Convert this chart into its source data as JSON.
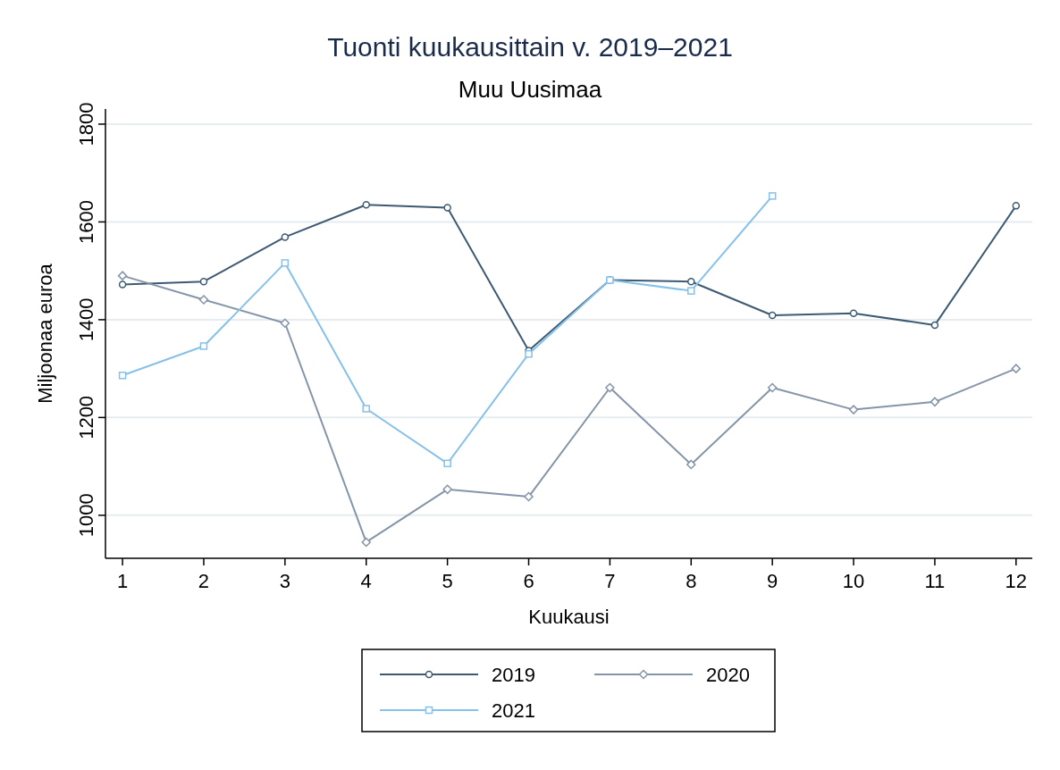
{
  "chart_data": {
    "type": "line",
    "title": "Tuonti kuukausittain v. 2019–2021",
    "subtitle": "Muu Uusimaa",
    "xlabel": "Kuukausi",
    "ylabel": "Miljoonaa euroa",
    "x": [
      1,
      2,
      3,
      4,
      5,
      6,
      7,
      8,
      9,
      10,
      11,
      12
    ],
    "series": [
      {
        "name": "2019",
        "color": "#3e5a73",
        "marker": "circle",
        "values": [
          1472,
          1478,
          1569,
          1635,
          1629,
          1337,
          1481,
          1478,
          1409,
          1413,
          1389,
          1633
        ]
      },
      {
        "name": "2020",
        "color": "#8595a8",
        "marker": "diamond",
        "values": [
          1490,
          1441,
          1393,
          945,
          1053,
          1038,
          1261,
          1104,
          1261,
          1216,
          1232,
          1300
        ]
      },
      {
        "name": "2021",
        "color": "#85c1ea",
        "marker": "square",
        "values": [
          1286,
          1346,
          1516,
          1218,
          1106,
          1330,
          1481,
          1459,
          1653,
          null,
          null,
          null
        ]
      }
    ],
    "xlim": [
      0.79,
      12.2
    ],
    "xticks": [
      1,
      2,
      3,
      4,
      5,
      6,
      7,
      8,
      9,
      10,
      11,
      12
    ],
    "ylim": [
      912,
      1831
    ],
    "yticks": [
      1000,
      1200,
      1400,
      1600,
      1800
    ],
    "grid": "y",
    "legend": "bottom"
  }
}
